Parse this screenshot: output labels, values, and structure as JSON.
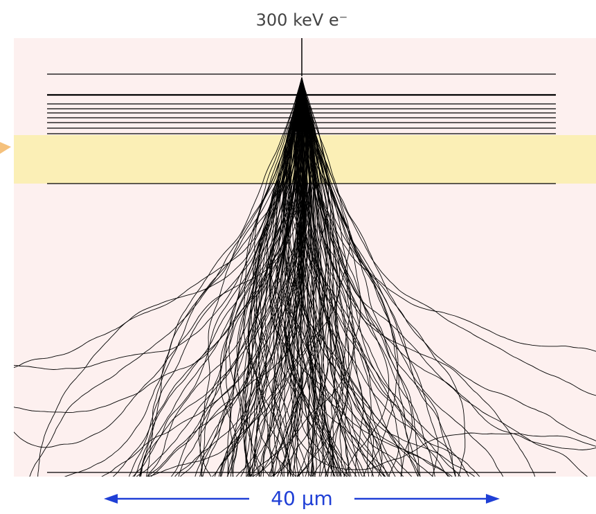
{
  "title": "300 keV e⁻",
  "scale_bar": {
    "label": "40 µm"
  }
}
